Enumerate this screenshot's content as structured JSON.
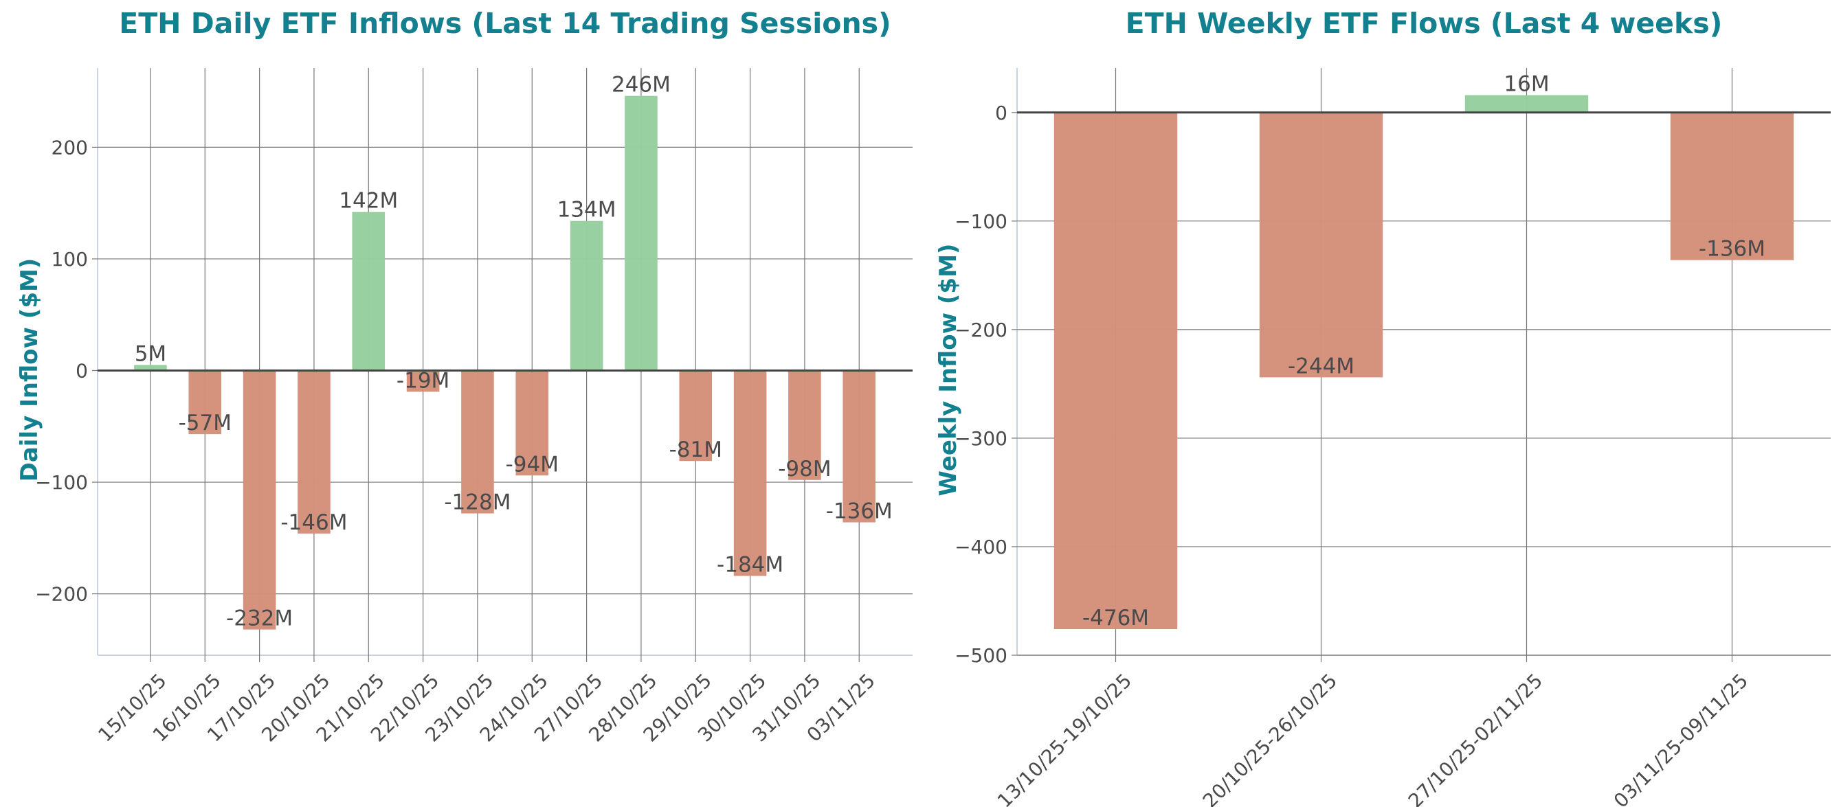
{
  "chart_data": [
    {
      "type": "bar",
      "title": "ETH Daily ETF Inflows (Last 14 Trading Sessions)",
      "xlabel": "",
      "ylabel": "Daily Inflow ($M)",
      "categories": [
        "15/10/25",
        "16/10/25",
        "17/10/25",
        "20/10/25",
        "21/10/25",
        "22/10/25",
        "23/10/25",
        "24/10/25",
        "27/10/25",
        "28/10/25",
        "29/10/25",
        "30/10/25",
        "31/10/25",
        "03/11/25"
      ],
      "values": [
        5,
        -57,
        -232,
        -146,
        142,
        -19,
        -128,
        -94,
        134,
        246,
        -81,
        -184,
        -98,
        -136
      ],
      "data_labels": [
        "5M",
        "-57M",
        "-232M",
        "-146M",
        "142M",
        "-19M",
        "-128M",
        "-94M",
        "134M",
        "246M",
        "-81M",
        "-184M",
        "-98M",
        "-136M"
      ],
      "ylim": [
        -255,
        271
      ],
      "yticks": [
        -200,
        -100,
        0,
        100,
        200
      ],
      "grid": true,
      "colors": {
        "positive": "#96cfa0",
        "negative": "#d4917b",
        "title": "#13808f"
      }
    },
    {
      "type": "bar",
      "title": "ETH Weekly ETF Flows (Last 4 weeks)",
      "xlabel": "",
      "ylabel": "Weekly Inflow ($M)",
      "categories": [
        "13/10/25-19/10/25",
        "20/10/25-26/10/25",
        "27/10/25-02/11/25",
        "03/11/25-09/11/25"
      ],
      "values": [
        -476,
        -244,
        16,
        -136
      ],
      "data_labels": [
        "-476M",
        "-244M",
        "16M",
        "-136M"
      ],
      "ylim": [
        -500,
        41
      ],
      "yticks": [
        -500,
        -400,
        -300,
        -200,
        -100,
        0
      ],
      "grid": true,
      "colors": {
        "positive": "#96cfa0",
        "negative": "#d4917b",
        "title": "#13808f"
      }
    }
  ]
}
